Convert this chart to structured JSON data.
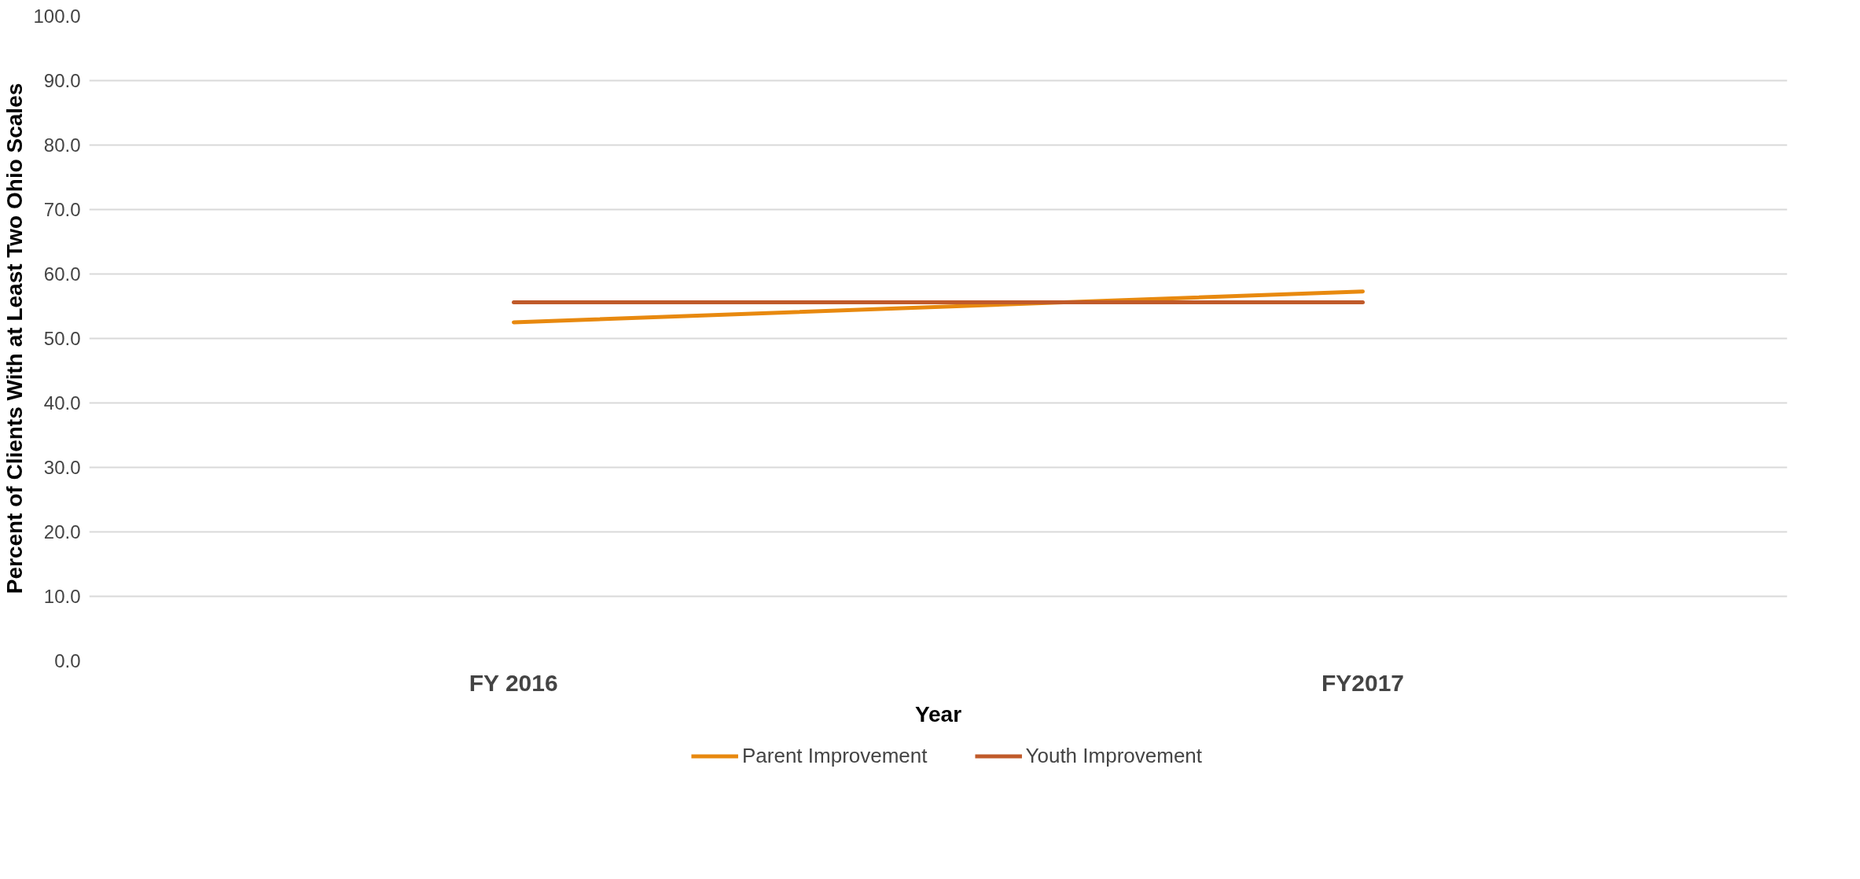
{
  "chart_data": {
    "type": "line",
    "xlabel": "Year",
    "ylabel": "Percent of Clients With at Least Two Ohio Scales",
    "categories": [
      "FY 2016",
      "FY2017"
    ],
    "series": [
      {
        "name": "Parent Improvement",
        "color": "#e8890f",
        "values": [
          52.5,
          57.3
        ]
      },
      {
        "name": "Youth Improvement",
        "color": "#c05a2a",
        "values": [
          55.6,
          55.6
        ]
      }
    ],
    "ylim": [
      0,
      100
    ],
    "yticks": [
      {
        "value": 0,
        "label": "0.0"
      },
      {
        "value": 10,
        "label": "10.0"
      },
      {
        "value": 20,
        "label": "20.0"
      },
      {
        "value": 30,
        "label": "30.0"
      },
      {
        "value": 40,
        "label": "40.0"
      },
      {
        "value": 50,
        "label": "50.0"
      },
      {
        "value": 60,
        "label": "60.0"
      },
      {
        "value": 70,
        "label": "70.0"
      },
      {
        "value": 80,
        "label": "80.0"
      },
      {
        "value": 90,
        "label": "90.0"
      },
      {
        "value": 100,
        "label": "100.0"
      }
    ],
    "grid": "y",
    "legend": "bottom"
  }
}
